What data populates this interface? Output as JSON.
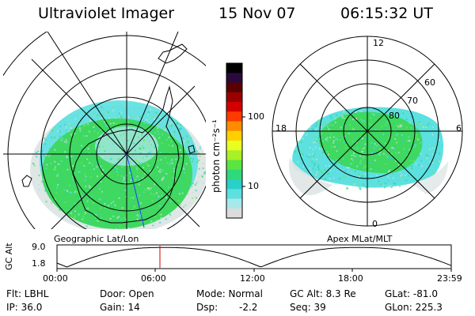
{
  "header": {
    "instrument": "Ultraviolet Imager",
    "date": "15 Nov 07",
    "time": "06:15:32 UT"
  },
  "geographic_panel": {
    "caption": "Geographic Lat/Lon"
  },
  "apex_panel": {
    "caption": "Apex MLat/MLT",
    "mlt_labels": {
      "top": "12",
      "left": "18",
      "right": "6",
      "bottom": "0"
    },
    "lat_labels": [
      "60",
      "70",
      "80"
    ]
  },
  "colorbar": {
    "unit_label": "photon cm⁻²s⁻¹",
    "tick_labels": [
      "100",
      "10"
    ],
    "colors": [
      "#000000",
      "#2a0a3c",
      "#5a0000",
      "#9a0000",
      "#d40000",
      "#ff3a00",
      "#ff8c00",
      "#ffd000",
      "#e8ff20",
      "#a8f028",
      "#5ce440",
      "#2fd87c",
      "#28d0c8",
      "#5ce0e0",
      "#a8e8e8",
      "#dcdcdc"
    ]
  },
  "altitude_plot": {
    "axis_title": "GC Alt",
    "y_ticks": [
      "9.0",
      "1.8"
    ],
    "x_ticks": [
      "00:00",
      "06:00",
      "12:00",
      "18:00",
      "23:59"
    ],
    "current_time_marker_hours": 6.26,
    "line_color": "#000000",
    "marker_color": "#cc0000"
  },
  "info": {
    "filter": "Flt: LBHL",
    "door": "Door: Open",
    "mode": "Mode: Normal",
    "gc_alt": "GC Alt: 8.3 Re",
    "glat": "GLat: -81.0",
    "ip": "IP: 36.0",
    "gain": "Gain: 14",
    "dsp_label": "Dsp:",
    "dsp_value": "-2.2",
    "seq": "Seq: 39",
    "glon": "GLon: 225.3"
  }
}
